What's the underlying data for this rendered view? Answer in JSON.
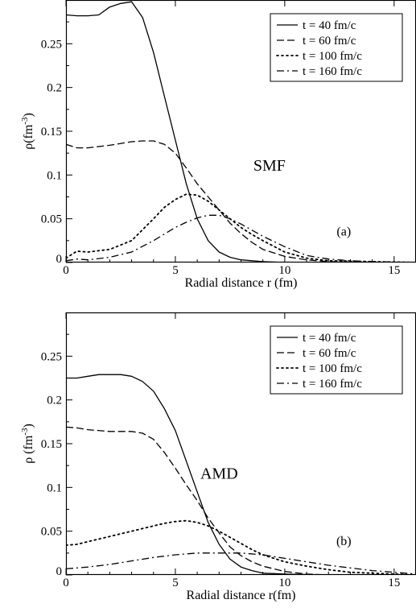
{
  "chart_data": [
    {
      "type": "line",
      "xlabel": "Radial distance r (fm)",
      "ylabel": "ρ(fm",
      "ylabel_exp": "-3",
      "ylabel_close": ")",
      "xlim": [
        0,
        16
      ],
      "ylim": [
        0,
        0.3
      ],
      "xticks": [
        0,
        5,
        10,
        15
      ],
      "yticks": [
        0,
        0.05,
        0.1,
        0.15,
        0.2,
        0.25
      ],
      "xtick_labels": [
        "0",
        "5",
        "10",
        "15"
      ],
      "ytick_labels": [
        "0",
        "0.05",
        "0.1",
        "0.15",
        "0.2",
        "0.25"
      ],
      "grid": false,
      "legend_position": "top-right",
      "annotations": [
        {
          "text": "SMF",
          "role": "model",
          "x": 9.3,
          "y": 0.105
        },
        {
          "text": "(a)",
          "role": "panel",
          "x": 12.7,
          "y": 0.031
        }
      ],
      "series": [
        {
          "name": "t = 40 fm/c",
          "style": "solid",
          "x": [
            0,
            0.5,
            1,
            1.5,
            2,
            2.5,
            3,
            3.5,
            4,
            4.5,
            5,
            5.5,
            6,
            6.5,
            7,
            7.5,
            8,
            9,
            10,
            12,
            14,
            16
          ],
          "y": [
            0.283,
            0.282,
            0.282,
            0.283,
            0.292,
            0.296,
            0.298,
            0.28,
            0.24,
            0.19,
            0.14,
            0.09,
            0.05,
            0.025,
            0.012,
            0.006,
            0.003,
            0.001,
            0.0,
            0.0,
            0.0,
            0.0
          ]
        },
        {
          "name": "t = 60 fm/c",
          "style": "dashed",
          "x": [
            0,
            0.5,
            1,
            2,
            3,
            3.5,
            4,
            4.5,
            5,
            5.5,
            6,
            6.5,
            7,
            7.5,
            8,
            8.5,
            9,
            10,
            11,
            12,
            14,
            16
          ],
          "y": [
            0.135,
            0.131,
            0.131,
            0.134,
            0.138,
            0.139,
            0.139,
            0.135,
            0.125,
            0.108,
            0.09,
            0.075,
            0.06,
            0.045,
            0.033,
            0.023,
            0.015,
            0.007,
            0.003,
            0.001,
            0.0,
            0.0
          ]
        },
        {
          "name": "t = 100 fm/c",
          "style": "dotted",
          "x": [
            0,
            0.5,
            1,
            2,
            3,
            4,
            4.5,
            5,
            5.5,
            6,
            6.5,
            7,
            7.5,
            8,
            8.5,
            9,
            10,
            11,
            12,
            14,
            16
          ],
          "y": [
            0.005,
            0.013,
            0.012,
            0.015,
            0.025,
            0.05,
            0.063,
            0.072,
            0.078,
            0.077,
            0.07,
            0.06,
            0.05,
            0.04,
            0.032,
            0.025,
            0.012,
            0.005,
            0.002,
            0.001,
            0.0
          ]
        },
        {
          "name": "t = 160 fm/c",
          "style": "dashdot",
          "x": [
            0,
            0.5,
            1,
            2,
            3,
            4,
            5,
            5.5,
            6,
            6.5,
            7,
            7.5,
            8,
            8.5,
            9,
            10,
            11,
            12,
            13,
            14,
            16
          ],
          "y": [
            0.002,
            0.004,
            0.003,
            0.006,
            0.012,
            0.025,
            0.04,
            0.046,
            0.051,
            0.054,
            0.054,
            0.05,
            0.044,
            0.037,
            0.03,
            0.018,
            0.008,
            0.004,
            0.002,
            0.001,
            0.0
          ]
        }
      ]
    },
    {
      "type": "line",
      "xlabel": "Radial distance r(fm)",
      "ylabel": "ρ (fm",
      "ylabel_exp": "-3",
      "ylabel_close": ")",
      "xlim": [
        0,
        16
      ],
      "ylim": [
        0,
        0.3
      ],
      "xticks": [
        0,
        5,
        10,
        15
      ],
      "yticks": [
        0,
        0.05,
        0.1,
        0.15,
        0.2,
        0.25
      ],
      "xtick_labels": [
        "0",
        "5",
        "10",
        "15"
      ],
      "ytick_labels": [
        "0",
        "0.05",
        "0.1",
        "0.15",
        "0.2",
        "0.25"
      ],
      "grid": false,
      "legend_position": "top-right",
      "annotations": [
        {
          "text": "AMD",
          "role": "model",
          "x": 7.0,
          "y": 0.11
        },
        {
          "text": "(b)",
          "role": "panel",
          "x": 12.7,
          "y": 0.034
        }
      ],
      "series": [
        {
          "name": "t = 40 fm/c",
          "style": "solid",
          "x": [
            0,
            0.5,
            1,
            1.5,
            2,
            2.5,
            3,
            3.5,
            4,
            4.5,
            5,
            5.5,
            6,
            6.5,
            7,
            7.5,
            8,
            8.5,
            9,
            10,
            12,
            14,
            16
          ],
          "y": [
            0.225,
            0.225,
            0.227,
            0.229,
            0.229,
            0.229,
            0.227,
            0.221,
            0.21,
            0.19,
            0.165,
            0.13,
            0.095,
            0.06,
            0.035,
            0.018,
            0.009,
            0.005,
            0.002,
            0.001,
            0.0,
            0.0,
            0.0
          ]
        },
        {
          "name": "t = 60 fm/c",
          "style": "dashed",
          "x": [
            0,
            0.5,
            1,
            2,
            3,
            3.5,
            4,
            4.5,
            5,
            5.5,
            6,
            6.5,
            7,
            7.5,
            8,
            8.5,
            9,
            10,
            11,
            12,
            14,
            16
          ],
          "y": [
            0.169,
            0.168,
            0.166,
            0.164,
            0.164,
            0.162,
            0.155,
            0.14,
            0.122,
            0.103,
            0.085,
            0.065,
            0.048,
            0.032,
            0.022,
            0.015,
            0.01,
            0.004,
            0.001,
            0.0,
            0.0,
            0.0
          ]
        },
        {
          "name": "t = 100 fm/c",
          "style": "dotted",
          "x": [
            0,
            0.5,
            1,
            2,
            3,
            4,
            4.5,
            5,
            5.5,
            6,
            6.5,
            7,
            7.5,
            8,
            8.5,
            9,
            10,
            11,
            12,
            13,
            14,
            16
          ],
          "y": [
            0.034,
            0.035,
            0.038,
            0.044,
            0.05,
            0.056,
            0.059,
            0.061,
            0.062,
            0.06,
            0.056,
            0.05,
            0.043,
            0.036,
            0.029,
            0.023,
            0.015,
            0.01,
            0.006,
            0.003,
            0.002,
            0.0
          ]
        },
        {
          "name": "t = 160 fm/c",
          "style": "dashdot",
          "x": [
            0,
            1,
            2,
            3,
            4,
            5,
            6,
            7,
            7.5,
            8,
            9,
            10,
            11,
            12,
            13,
            14,
            15,
            16
          ],
          "y": [
            0.007,
            0.009,
            0.012,
            0.016,
            0.02,
            0.023,
            0.025,
            0.025,
            0.025,
            0.025,
            0.023,
            0.019,
            0.015,
            0.011,
            0.008,
            0.005,
            0.003,
            0.001
          ]
        }
      ]
    }
  ]
}
